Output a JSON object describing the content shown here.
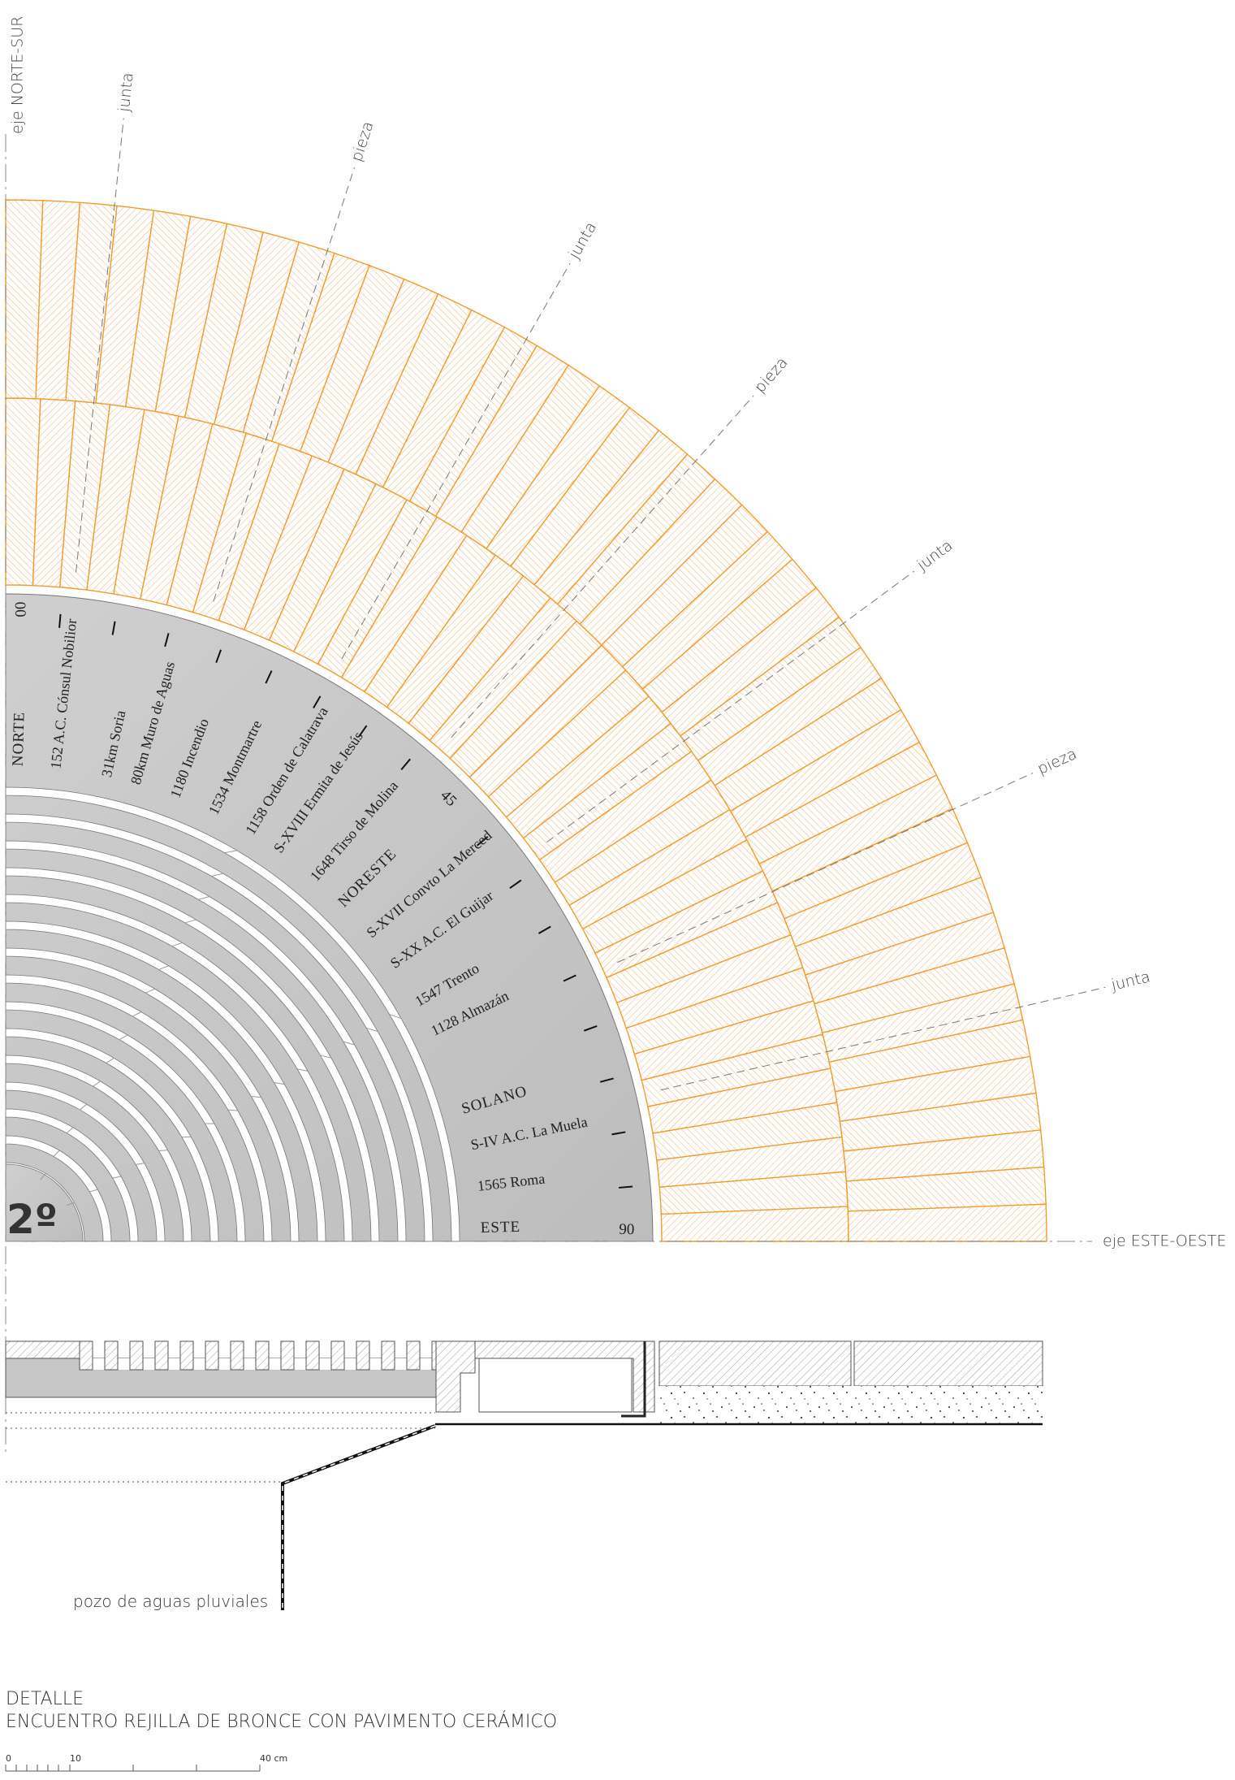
{
  "axes": {
    "vertical": "eje NORTE-SUR",
    "horizontal": "eje ESTE-OESTE"
  },
  "annotations": [
    "junta",
    "pieza",
    "junta",
    "pieza",
    "junta",
    "pieza",
    "junta"
  ],
  "dial": {
    "labels": [
      "NORTE",
      "152 A.C. Cónsul Nobilior",
      "31km Soria",
      "80km Muro de Aguas",
      "1180 Incendio",
      "1534 Montmartre",
      "1158 Orden de Calatrava",
      "S-XVIII Ermita de Jesús",
      "1648 Tirso de Molina",
      "NORESTE",
      "S-XVII Convto La Merced",
      "S-XX A.C. El Guijar",
      "1547 Trento",
      "1128 Almazán",
      "SOLANO",
      "S-IV A.C. La Muela",
      "1565 Roma",
      "ESTE"
    ],
    "degrees": [
      "00",
      "45",
      "90"
    ],
    "badge": "2º"
  },
  "section": {
    "label": "pozo de aguas pluviales"
  },
  "footer": {
    "title": "DETALLE",
    "subtitle": "ENCUENTRO REJILLA DE BRONCE CON PAVIMENTO CERÁMICO"
  },
  "scale_bar": {
    "labels": [
      "0",
      "10",
      "40 cm"
    ]
  }
}
